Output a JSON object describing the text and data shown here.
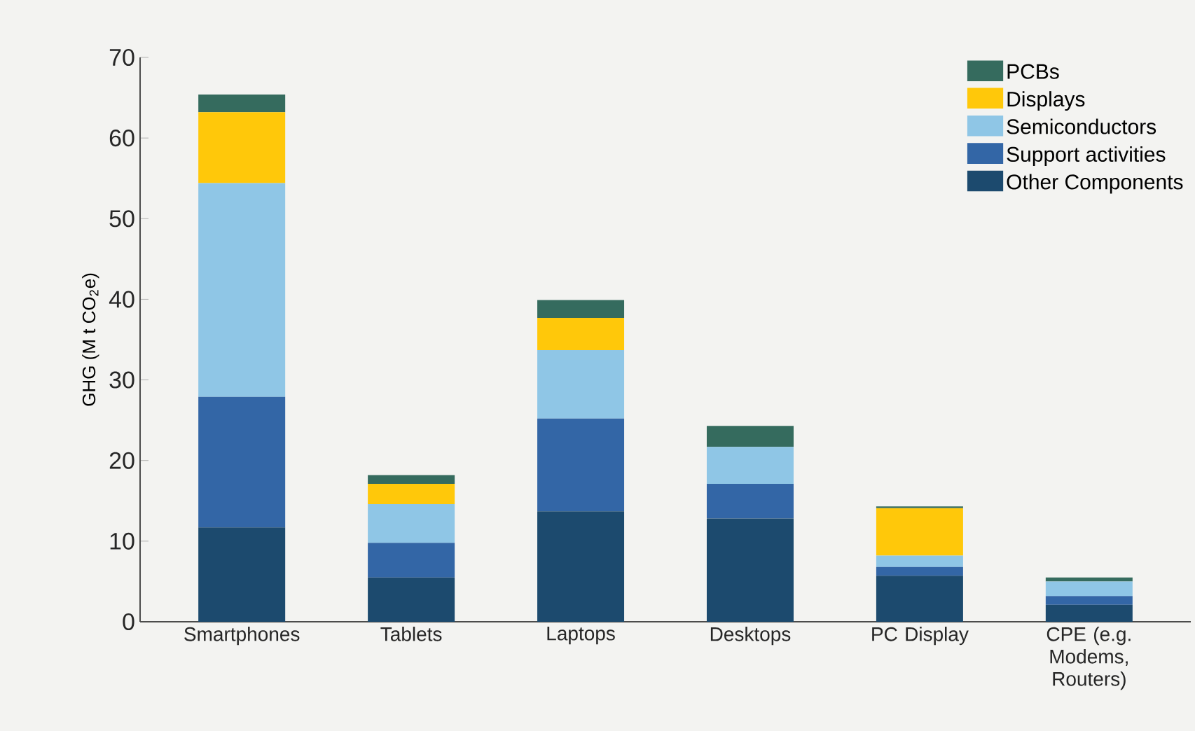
{
  "chart_data": {
    "type": "bar",
    "stacked": true,
    "ylabel": "GHG (M t CO$_{2}$e)",
    "categories": [
      "Smartphones",
      "Tablets",
      "Laptops",
      "Desktops",
      "PC Display",
      "CPE (e.g. Modems, Routers)"
    ],
    "series": [
      {
        "name": "Other Components",
        "color": "#1c4a6e",
        "values": [
          11.7,
          5.5,
          13.7,
          12.8,
          5.7,
          2.1
        ]
      },
      {
        "name": "Support activities",
        "color": "#3366a6",
        "values": [
          16.2,
          4.3,
          11.5,
          4.3,
          1.1,
          1.1
        ]
      },
      {
        "name": "Semiconductors",
        "color": "#8fc6e6",
        "values": [
          26.5,
          4.8,
          8.5,
          4.6,
          1.4,
          1.8
        ]
      },
      {
        "name": "Displays",
        "color": "#ffc80a",
        "values": [
          8.8,
          2.5,
          4.0,
          0,
          5.9,
          0
        ]
      },
      {
        "name": "PCBs",
        "color": "#356b5e",
        "values": [
          2.2,
          1.1,
          2.2,
          2.6,
          0.2,
          0.5
        ]
      }
    ],
    "ylim": [
      0,
      70
    ],
    "yticks": [
      0,
      10,
      20,
      30,
      40,
      50,
      60,
      70
    ],
    "legend": "top right"
  }
}
